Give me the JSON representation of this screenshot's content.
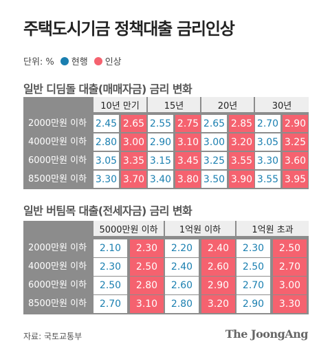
{
  "title": "주택도시기금 정책대출 금리인상",
  "legend": {
    "unit": "단위: %",
    "current": "현행",
    "raised": "인상",
    "current_color": "#1a7fb0",
    "raised_color": "#f5626f"
  },
  "table1": {
    "title": "일반 디딤돌 대출(매매자금) 금리 변화",
    "columns": [
      "10년 만기",
      "15년",
      "20년",
      "30년"
    ],
    "rows": [
      {
        "label": "2000만원 이하",
        "values": [
          [
            "2.45",
            "2.65"
          ],
          [
            "2.55",
            "2.75"
          ],
          [
            "2.65",
            "2.85"
          ],
          [
            "2.70",
            "2.90"
          ]
        ]
      },
      {
        "label": "4000만원 이하",
        "values": [
          [
            "2.80",
            "3.00"
          ],
          [
            "2.90",
            "3.10"
          ],
          [
            "3.00",
            "3.20"
          ],
          [
            "3.05",
            "3.25"
          ]
        ]
      },
      {
        "label": "6000만원 이하",
        "values": [
          [
            "3.05",
            "3.35"
          ],
          [
            "3.15",
            "3.45"
          ],
          [
            "3.25",
            "3.55"
          ],
          [
            "3.30",
            "3.60"
          ]
        ]
      },
      {
        "label": "8500만원 이하",
        "values": [
          [
            "3.30",
            "3.70"
          ],
          [
            "3.40",
            "3.80"
          ],
          [
            "3.50",
            "3.90"
          ],
          [
            "3.55",
            "3.95"
          ]
        ]
      }
    ]
  },
  "table2": {
    "title": "일반 버팀목 대출(전세자금) 금리 변화",
    "columns": [
      "5000만원 이하",
      "1억원 이하",
      "1억원 초과"
    ],
    "rows": [
      {
        "label": "2000만원 이하",
        "values": [
          [
            "2.10",
            "2.30"
          ],
          [
            "2.20",
            "2.40"
          ],
          [
            "2.30",
            "2.50"
          ]
        ]
      },
      {
        "label": "4000만원 이하",
        "values": [
          [
            "2.30",
            "2.50"
          ],
          [
            "2.40",
            "2.60"
          ],
          [
            "2.50",
            "2.70"
          ]
        ]
      },
      {
        "label": "6000만원 이하",
        "values": [
          [
            "2.50",
            "2.80"
          ],
          [
            "2.60",
            "2.90"
          ],
          [
            "2.70",
            "3.00"
          ]
        ]
      },
      {
        "label": "8500만원 이하",
        "values": [
          [
            "2.70",
            "3.10"
          ],
          [
            "2.80",
            "3.20"
          ],
          [
            "2.90",
            "3.30"
          ]
        ]
      }
    ]
  },
  "source": "자료: 국토교통부",
  "logo": "The JoongAng"
}
